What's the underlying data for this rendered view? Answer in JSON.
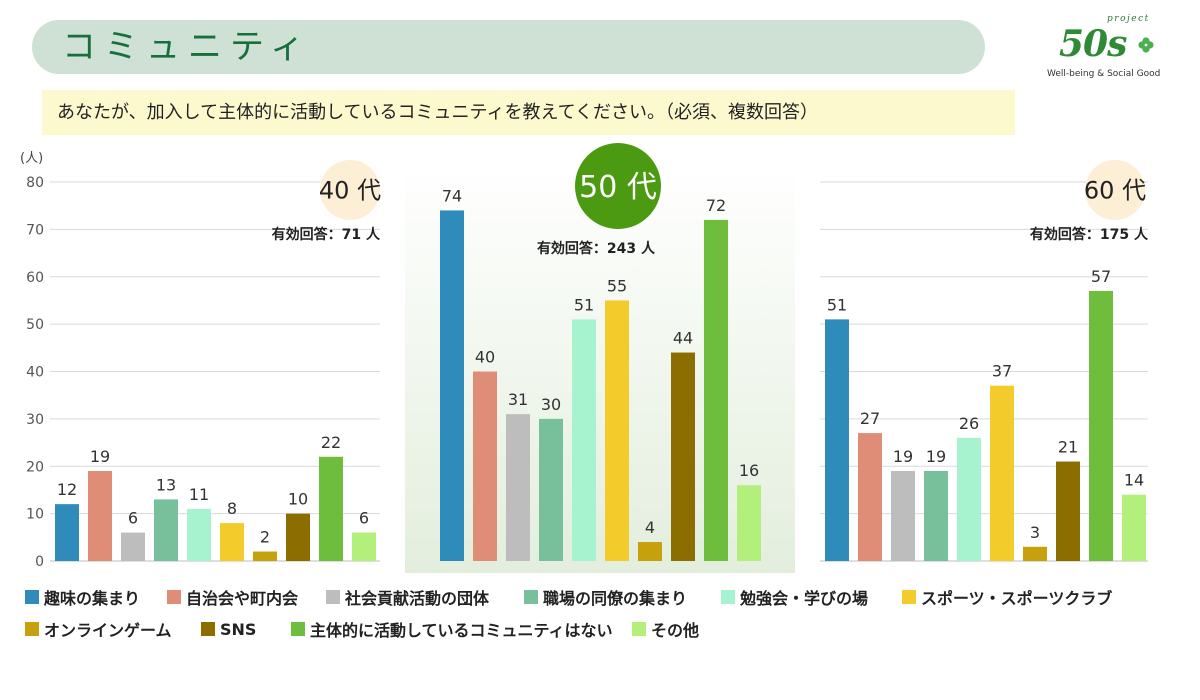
{
  "header": {
    "title": "コミュニティ"
  },
  "logo": {
    "project": "project",
    "mark": "50s",
    "tagline": "Well-being & Social Good"
  },
  "colors": {
    "header_bg": "#cfe1d5",
    "title": "#17703c",
    "question_bg": "#fdf9cf",
    "panel_highlight": "#e3eedd"
  },
  "chart_data": {
    "type": "bar",
    "title": "あなたが、加入して主体的に活動しているコミュニティを教えてください。（必須、複数回答）",
    "xlabel": "",
    "ylabel": "(人)",
    "ylim": [
      0,
      80
    ],
    "yticks": [
      0,
      10,
      20,
      30,
      40,
      50,
      60,
      70,
      80
    ],
    "grid": true,
    "categories": [
      "趣味の集まり",
      "自治会や町内会",
      "社会貢献活動の団体",
      "職場の同僚の集まり",
      "勉強会・学びの場",
      "スポーツ・スポーツクラブ",
      "オンラインゲーム",
      "SNS",
      "主体的に活動しているコミュニティはない",
      "その他"
    ],
    "colors": [
      "#2e8bba",
      "#df8d76",
      "#bdbdbd",
      "#78c09b",
      "#a8f3cf",
      "#f3cb2b",
      "#c6a10d",
      "#8b6d00",
      "#6fbd3d",
      "#b3ef7b"
    ],
    "series": [
      {
        "name": "40 代",
        "respondents": "有効回答：71 人",
        "badge_color": "#fdeed6",
        "badge_text_color": "#222222",
        "values": [
          12,
          19,
          6,
          13,
          11,
          8,
          2,
          10,
          22,
          6
        ]
      },
      {
        "name": "50 代",
        "respondents": "有効回答：243 人",
        "badge_color": "#4b9a12",
        "badge_text_color": "#ffffff",
        "values": [
          74,
          40,
          31,
          30,
          51,
          55,
          4,
          44,
          72,
          16
        ]
      },
      {
        "name": "60 代",
        "respondents": "有効回答：175 人",
        "badge_color": "#fdeed6",
        "badge_text_color": "#222222",
        "values": [
          51,
          27,
          19,
          19,
          26,
          37,
          3,
          21,
          57,
          14
        ]
      }
    ]
  }
}
